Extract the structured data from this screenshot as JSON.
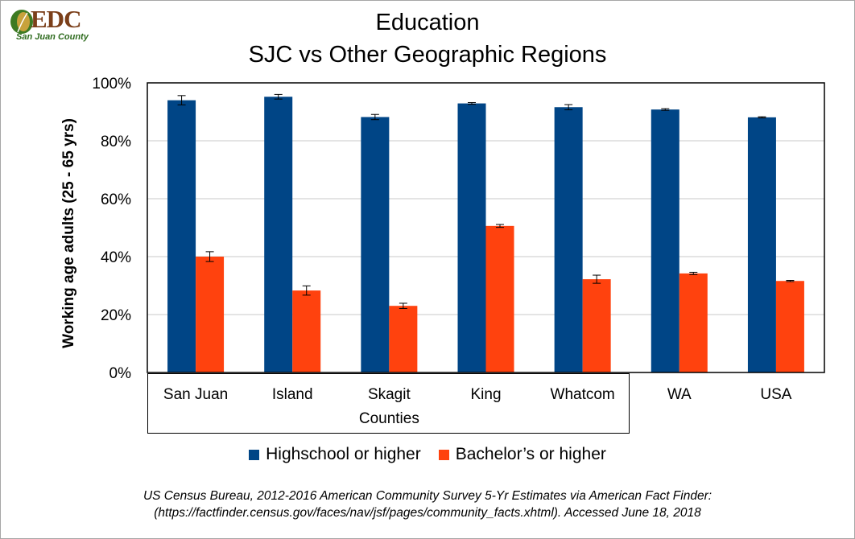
{
  "logo": {
    "text": "EDC",
    "subtext": "San Juan County"
  },
  "chart_data": {
    "type": "bar",
    "title": [
      "Education",
      "SJC vs Other Geographic Regions"
    ],
    "ylabel": "Working age adults  (25 - 65 yrs)",
    "ylim": [
      0,
      100
    ],
    "y_ticks": [
      "0%",
      "20%",
      "40%",
      "60%",
      "80%",
      "100%"
    ],
    "y_tick_values": [
      0,
      20,
      40,
      60,
      80,
      100
    ],
    "grid": true,
    "categories": [
      "San Juan",
      "Island",
      "Skagit",
      "King",
      "Whatcom",
      "WA",
      "USA"
    ],
    "category_group_label": "Counties",
    "series": [
      {
        "name": "Highschool or higher",
        "color": "#004586",
        "values": [
          94.0,
          95.2,
          88.2,
          92.9,
          91.6,
          90.8,
          88.1
        ],
        "errors": [
          1.6,
          0.8,
          0.9,
          0.3,
          0.9,
          0.3,
          0.2
        ]
      },
      {
        "name": "Bachelor’s or higher",
        "color": "#ff420e",
        "values": [
          40.0,
          28.3,
          23.0,
          50.6,
          32.2,
          34.2,
          31.6
        ],
        "errors": [
          1.7,
          1.6,
          0.9,
          0.5,
          1.4,
          0.4,
          0.2
        ]
      }
    ],
    "legend_position": "bottom"
  },
  "source": {
    "line1": "US Census Bureau, 2012-2016 American Community Survey 5-Yr Estimates via American Fact Finder:",
    "line2": "(https://factfinder.census.gov/faces/nav/jsf/pages/community_facts.xhtml). Accessed June 18, 2018"
  }
}
